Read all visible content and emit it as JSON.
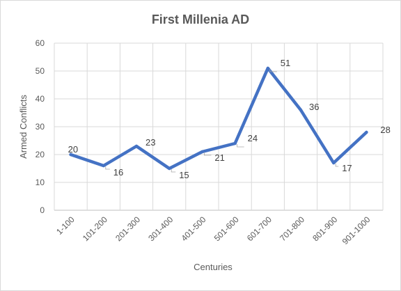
{
  "chart_data": {
    "type": "line",
    "title": "First Millenia AD",
    "xlabel": "Centuries",
    "ylabel": "Armed Conflicts",
    "categories": [
      "1-100",
      "101-200",
      "201-300",
      "301-400",
      "401-500",
      "501-600",
      "601-700",
      "701-800",
      "801-900",
      "901-1000"
    ],
    "series": [
      {
        "values": [
          20,
          16,
          23,
          15,
          21,
          24,
          51,
          36,
          17,
          28
        ],
        "color": "#4472c4"
      }
    ],
    "data_labels": [
      "20",
      "16",
      "23",
      "15",
      "21",
      "24",
      "51",
      "36",
      "17",
      "28"
    ],
    "ylim": [
      0,
      60
    ],
    "yticks": [
      0,
      10,
      20,
      30,
      40,
      50,
      60
    ],
    "grid": true,
    "legend": "none"
  }
}
